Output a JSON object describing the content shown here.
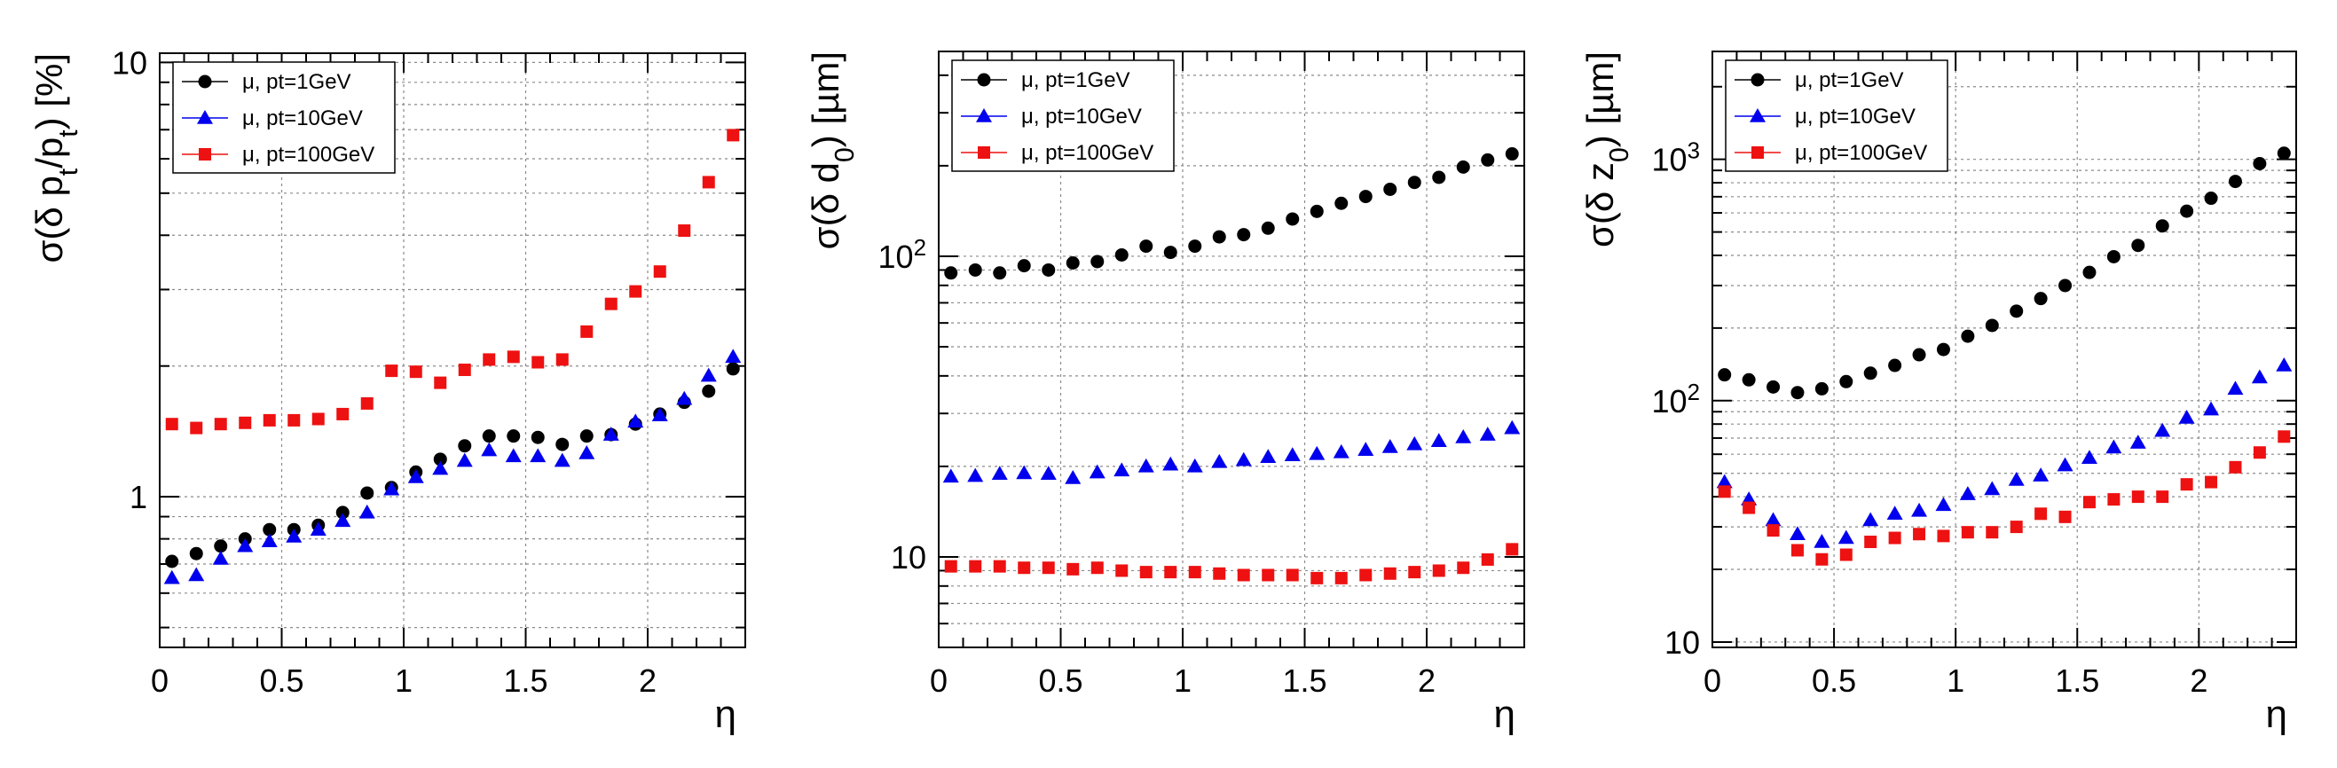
{
  "chart_data": [
    {
      "type": "scatter",
      "ylabel": "σ(δ p_t/p_t) [%]",
      "xlabel": "η",
      "xlim": [
        0,
        2.4
      ],
      "ylim": [
        0.45,
        10.5
      ],
      "yscale": "log",
      "grid": true,
      "legend": "top-left",
      "x_ticks": [
        "0",
        "0.5",
        "1",
        "1.5",
        "2"
      ],
      "y_ticks": [
        "1",
        "10"
      ],
      "x": [
        0.05,
        0.15,
        0.25,
        0.35,
        0.45,
        0.55,
        0.65,
        0.75,
        0.85,
        0.95,
        1.05,
        1.15,
        1.25,
        1.35,
        1.45,
        1.55,
        1.65,
        1.75,
        1.85,
        1.95,
        2.05,
        2.15,
        2.25,
        2.35
      ],
      "series": [
        {
          "name": "μ, pt=1GeV",
          "marker": "circle",
          "color": "#000000",
          "values": [
            0.71,
            0.74,
            0.77,
            0.8,
            0.84,
            0.84,
            0.86,
            0.92,
            1.02,
            1.05,
            1.14,
            1.22,
            1.31,
            1.38,
            1.38,
            1.37,
            1.32,
            1.38,
            1.39,
            1.47,
            1.55,
            1.65,
            1.75,
            1.97
          ]
        },
        {
          "name": "μ, pt=10GeV",
          "marker": "triangle",
          "color": "#0000ee",
          "values": [
            0.65,
            0.66,
            0.72,
            0.77,
            0.79,
            0.81,
            0.84,
            0.88,
            0.92,
            1.04,
            1.11,
            1.16,
            1.21,
            1.28,
            1.24,
            1.24,
            1.21,
            1.26,
            1.39,
            1.49,
            1.54,
            1.68,
            1.9,
            2.1
          ]
        },
        {
          "name": "μ, pt=100GeV",
          "marker": "square",
          "color": "#ee1111",
          "values": [
            1.47,
            1.44,
            1.47,
            1.48,
            1.5,
            1.5,
            1.51,
            1.55,
            1.64,
            1.95,
            1.94,
            1.83,
            1.96,
            2.07,
            2.1,
            2.04,
            2.07,
            2.4,
            2.78,
            2.97,
            3.3,
            4.1,
            5.3,
            6.8
          ]
        }
      ]
    },
    {
      "type": "scatter",
      "ylabel": "σ(δ d_0) [µm]",
      "xlabel": "η",
      "xlim": [
        0,
        2.4
      ],
      "ylim": [
        5,
        480
      ],
      "yscale": "log",
      "grid": true,
      "legend": "top-left",
      "x_ticks": [
        "0",
        "0.5",
        "1",
        "1.5",
        "2"
      ],
      "y_ticks": [
        "10",
        "10^2"
      ],
      "x": [
        0.05,
        0.15,
        0.25,
        0.35,
        0.45,
        0.55,
        0.65,
        0.75,
        0.85,
        0.95,
        1.05,
        1.15,
        1.25,
        1.35,
        1.45,
        1.55,
        1.65,
        1.75,
        1.85,
        1.95,
        2.05,
        2.15,
        2.25,
        2.35
      ],
      "series": [
        {
          "name": "μ, pt=1GeV",
          "marker": "circle",
          "color": "#000000",
          "values": [
            88,
            90,
            88,
            93,
            90,
            95,
            96,
            101,
            108,
            103,
            108,
            116,
            118,
            124,
            133,
            141,
            150,
            158,
            167,
            176,
            183,
            198,
            209,
            219
          ]
        },
        {
          "name": "μ, pt=10GeV",
          "marker": "triangle",
          "color": "#0000ee",
          "values": [
            18.5,
            18.6,
            18.9,
            19.0,
            18.9,
            18.3,
            19.1,
            19.4,
            20.0,
            20.3,
            20.0,
            20.7,
            21.0,
            21.5,
            21.8,
            22.0,
            22.3,
            22.7,
            23.2,
            23.7,
            24.3,
            25.0,
            25.5,
            26.8
          ]
        },
        {
          "name": "μ, pt=100GeV",
          "marker": "square",
          "color": "#ee1111",
          "values": [
            9.3,
            9.3,
            9.3,
            9.2,
            9.2,
            9.1,
            9.2,
            9.0,
            8.9,
            8.9,
            8.9,
            8.8,
            8.7,
            8.7,
            8.7,
            8.5,
            8.5,
            8.7,
            8.8,
            8.9,
            9.0,
            9.2,
            9.8,
            10.6
          ]
        }
      ]
    },
    {
      "type": "scatter",
      "ylabel": "σ(δ z_0) [µm]",
      "xlabel": "η",
      "xlim": [
        0,
        2.4
      ],
      "ylim": [
        9.5,
        2800
      ],
      "yscale": "log",
      "grid": true,
      "legend": "top-left",
      "x_ticks": [
        "0",
        "0.5",
        "1",
        "1.5",
        "2"
      ],
      "y_ticks": [
        "10",
        "10^2",
        "10^3"
      ],
      "x": [
        0.05,
        0.15,
        0.25,
        0.35,
        0.45,
        0.55,
        0.65,
        0.75,
        0.85,
        0.95,
        1.05,
        1.15,
        1.25,
        1.35,
        1.45,
        1.55,
        1.65,
        1.75,
        1.85,
        1.95,
        2.05,
        2.15,
        2.25,
        2.35
      ],
      "series": [
        {
          "name": "μ, pt=1GeV",
          "marker": "circle",
          "color": "#000000",
          "values": [
            128,
            122,
            114,
            108,
            112,
            120,
            130,
            140,
            155,
            163,
            185,
            205,
            235,
            265,
            300,
            340,
            395,
            440,
            530,
            610,
            690,
            810,
            960,
            1060
          ]
        },
        {
          "name": "μ, pt=10GeV",
          "marker": "triangle",
          "color": "#0000ee",
          "values": [
            46,
            39,
            32,
            28,
            26,
            27,
            32,
            34,
            35,
            37,
            41,
            43,
            47,
            49,
            54,
            58,
            64,
            67,
            75,
            85,
            92,
            112,
            125,
            140
          ]
        },
        {
          "name": "μ, pt=100GeV",
          "marker": "square",
          "color": "#ee1111",
          "values": [
            42,
            36,
            29,
            24,
            22,
            23,
            26,
            27,
            28,
            27.5,
            28.5,
            28.5,
            30,
            34,
            33,
            38,
            39,
            40,
            40,
            45,
            46,
            53,
            61,
            71
          ]
        }
      ]
    }
  ]
}
